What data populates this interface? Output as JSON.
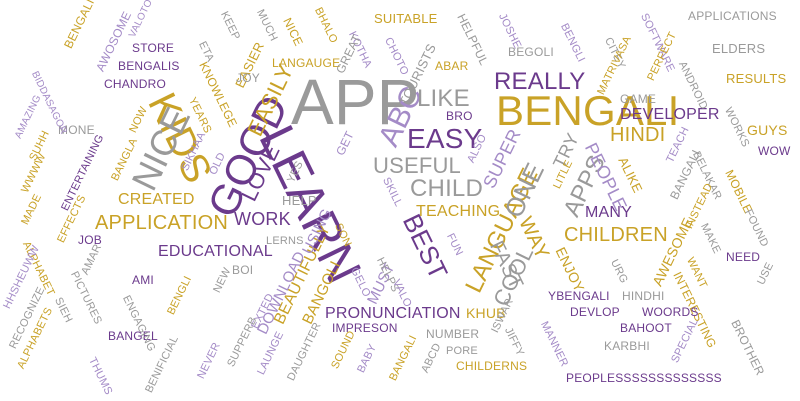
{
  "palette": {
    "purple": "#6b3a8c",
    "lilac": "#a48bc7",
    "gold": "#c9a227",
    "gray": "#9a9a9a"
  },
  "words": [
    {
      "t": "APP",
      "c": "gray"
    },
    {
      "t": "BENGALI",
      "c": "gold"
    },
    {
      "t": "LEARN",
      "c": "purple"
    },
    {
      "t": "GOOD",
      "c": "purple"
    },
    {
      "t": "KIDS",
      "c": "gold"
    },
    {
      "t": "NICE",
      "c": "gray"
    },
    {
      "t": "EASY",
      "c": "purple"
    },
    {
      "t": "ABC",
      "c": "lilac"
    },
    {
      "t": "REALLY",
      "c": "purple"
    },
    {
      "t": "LIKE",
      "c": "gray"
    },
    {
      "t": "CHILD",
      "c": "gray"
    },
    {
      "t": "USEFUL",
      "c": "gray"
    },
    {
      "t": "EASILY",
      "c": "gold"
    },
    {
      "t": "LOVE",
      "c": "purple"
    },
    {
      "t": "BEST",
      "c": "purple"
    },
    {
      "t": "LANGUAGE",
      "c": "gold"
    },
    {
      "t": "ONE",
      "c": "gray"
    },
    {
      "t": "APPS",
      "c": "gray"
    },
    {
      "t": "CHILDREN",
      "c": "gold"
    },
    {
      "t": "HINDI",
      "c": "gold"
    },
    {
      "t": "DEVELOPER",
      "c": "purple"
    },
    {
      "t": "APPLICATION",
      "c": "gold"
    },
    {
      "t": "WORK",
      "c": "purple"
    },
    {
      "t": "WAY",
      "c": "gold"
    },
    {
      "t": "FAST",
      "c": "gray"
    },
    {
      "t": "COOL",
      "c": "gray"
    },
    {
      "t": "TRY",
      "c": "gray"
    },
    {
      "t": "SUPER",
      "c": "lilac"
    },
    {
      "t": "PEOPLE",
      "c": "lilac"
    },
    {
      "t": "MANY",
      "c": "purple"
    },
    {
      "t": "TEACHING",
      "c": "gold"
    },
    {
      "t": "EDUCATIONAL",
      "c": "purple"
    },
    {
      "t": "CREATED",
      "c": "gold"
    },
    {
      "t": "PRONUNCIATION",
      "c": "purple"
    },
    {
      "t": "BEAUTIFULLY",
      "c": "gold"
    },
    {
      "t": "DOWNLOAD",
      "c": "lilac"
    },
    {
      "t": "BANGOLI",
      "c": "gold"
    },
    {
      "t": "USING",
      "c": "lilac"
    },
    {
      "t": "MUST",
      "c": "lilac"
    },
    {
      "t": "HELP",
      "c": "gray"
    },
    {
      "t": "KHUB",
      "c": "gold"
    },
    {
      "t": "ENJOY",
      "c": "gold"
    },
    {
      "t": "AWESOME",
      "c": "gold"
    },
    {
      "t": "ALIKE",
      "c": "gold"
    },
    {
      "t": "GUYS",
      "c": "gold"
    },
    {
      "t": "RESULTS",
      "c": "gold"
    },
    {
      "t": "APPLICATIONS",
      "c": "gray"
    },
    {
      "t": "ELDERS",
      "c": "gray"
    },
    {
      "t": "SUITABLE",
      "c": "gold"
    },
    {
      "t": "LANGAUGE",
      "c": "gold"
    },
    {
      "t": "STORE",
      "c": "purple"
    },
    {
      "t": "BENGALIS",
      "c": "purple"
    },
    {
      "t": "CHANDRO",
      "c": "purple"
    },
    {
      "t": "BENGALI",
      "c": "gold"
    },
    {
      "t": "AWOSOME",
      "c": "lilac"
    },
    {
      "t": "VALOTO",
      "c": "lilac"
    },
    {
      "t": "KEEP",
      "c": "gray"
    },
    {
      "t": "MUCH",
      "c": "gray"
    },
    {
      "t": "NICE",
      "c": "gold"
    },
    {
      "t": "BHALO",
      "c": "gold"
    },
    {
      "t": "KOTHA",
      "c": "lilac"
    },
    {
      "t": "CHOTO",
      "c": "lilac"
    },
    {
      "t": "HELPFUL",
      "c": "gray"
    },
    {
      "t": "JOSHE",
      "c": "lilac"
    },
    {
      "t": "BENGLI",
      "c": "lilac"
    },
    {
      "t": "SOFTWARE",
      "c": "lilac"
    },
    {
      "t": "CITEY",
      "c": "gray"
    },
    {
      "t": "ABAR",
      "c": "gold"
    },
    {
      "t": "BEGOLI",
      "c": "gray"
    },
    {
      "t": "GREAT",
      "c": "gray"
    },
    {
      "t": "TOURISTS",
      "c": "gray"
    },
    {
      "t": "EASIER",
      "c": "gold"
    },
    {
      "t": "ETA",
      "c": "gray"
    },
    {
      "t": "KNOWLEGE",
      "c": "gold"
    },
    {
      "t": "JOY",
      "c": "gray"
    },
    {
      "t": "YEARS",
      "c": "gold"
    },
    {
      "t": "MATRIVASA",
      "c": "gold"
    },
    {
      "t": "PERFECT",
      "c": "gold"
    },
    {
      "t": "ANDROID",
      "c": "gray"
    },
    {
      "t": "GAME",
      "c": "gray"
    },
    {
      "t": "WORKS",
      "c": "gray"
    },
    {
      "t": "WOW",
      "c": "purple"
    },
    {
      "t": "BELAKAR",
      "c": "gray"
    },
    {
      "t": "MOBILE",
      "c": "gold"
    },
    {
      "t": "TEACH",
      "c": "lilac"
    },
    {
      "t": "BANGALI",
      "c": "gray"
    },
    {
      "t": "INSTEAD",
      "c": "gold"
    },
    {
      "t": "FOUND",
      "c": "gray"
    },
    {
      "t": "MAKE",
      "c": "gray"
    },
    {
      "t": "NEED",
      "c": "purple"
    },
    {
      "t": "WANT",
      "c": "gold"
    },
    {
      "t": "USE",
      "c": "gray"
    },
    {
      "t": "INTERESTING",
      "c": "gold"
    },
    {
      "t": "BROTHER",
      "c": "gray"
    },
    {
      "t": "SPECIAL",
      "c": "lilac"
    },
    {
      "t": "WOORDS",
      "c": "purple"
    },
    {
      "t": "BAHOOT",
      "c": "purple"
    },
    {
      "t": "KARBHI",
      "c": "gray"
    },
    {
      "t": "DEVLOP",
      "c": "purple"
    },
    {
      "t": "HINDHI",
      "c": "gray"
    },
    {
      "t": "YBENGALI",
      "c": "purple"
    },
    {
      "t": "URG",
      "c": "gray"
    },
    {
      "t": "PEOPLESSSSSSSSSSSSS",
      "c": "purple"
    },
    {
      "t": "CHILDERNS",
      "c": "gold"
    },
    {
      "t": "MANNER",
      "c": "lilac"
    },
    {
      "t": "JIFFY",
      "c": "gray"
    },
    {
      "t": "ISWAR",
      "c": "gray"
    },
    {
      "t": "PORE",
      "c": "gray"
    },
    {
      "t": "NUMBER",
      "c": "gray"
    },
    {
      "t": "ABCD",
      "c": "gray"
    },
    {
      "t": "BANGALI",
      "c": "gold"
    },
    {
      "t": "BABY",
      "c": "lilac"
    },
    {
      "t": "SOUND",
      "c": "gold"
    },
    {
      "t": "IMPRESON",
      "c": "purple"
    },
    {
      "t": "DAUGHTER",
      "c": "gray"
    },
    {
      "t": "LAUNGE",
      "c": "lilac"
    },
    {
      "t": "EXTED",
      "c": "lilac"
    },
    {
      "t": "NEW",
      "c": "gray"
    },
    {
      "t": "SUPPERB",
      "c": "gray"
    },
    {
      "t": "BOI",
      "c": "gray"
    },
    {
      "t": "HELPS",
      "c": "gray"
    },
    {
      "t": "GELO",
      "c": "lilac"
    },
    {
      "t": "VALO",
      "c": "lilac"
    },
    {
      "t": "FUN",
      "c": "lilac"
    },
    {
      "t": "SON",
      "c": "gold"
    },
    {
      "t": "SKILL",
      "c": "lilac"
    },
    {
      "t": "LERNS",
      "c": "gray"
    },
    {
      "t": "GET",
      "c": "lilac"
    },
    {
      "t": "ALSO",
      "c": "lilac"
    },
    {
      "t": "BRO",
      "c": "purple"
    },
    {
      "t": "LITLE",
      "c": "gold"
    },
    {
      "t": "YES",
      "c": "gray"
    },
    {
      "t": "OLD",
      "c": "lilac"
    },
    {
      "t": "SIKHAA",
      "c": "lilac"
    },
    {
      "t": "NOW",
      "c": "gold"
    },
    {
      "t": "BANGLA",
      "c": "gold"
    },
    {
      "t": "ENTERTAINING",
      "c": "purple"
    },
    {
      "t": "MONE",
      "c": "gray"
    },
    {
      "t": "SUHH",
      "c": "gold"
    },
    {
      "t": "AMAZING",
      "c": "lilac"
    },
    {
      "t": "BIDDASAGOR",
      "c": "lilac"
    },
    {
      "t": "WWWW",
      "c": "gold"
    },
    {
      "t": "MADE",
      "c": "gold"
    },
    {
      "t": "EFFECTS",
      "c": "gold"
    },
    {
      "t": "JOB",
      "c": "purple"
    },
    {
      "t": "ALPHABET",
      "c": "gold"
    },
    {
      "t": "HHSHEUWW",
      "c": "lilac"
    },
    {
      "t": "RECOGNIZE",
      "c": "gray"
    },
    {
      "t": "ALPHABETS",
      "c": "gold"
    },
    {
      "t": "THUMS",
      "c": "lilac"
    },
    {
      "t": "BENIFICIAL",
      "c": "gray"
    },
    {
      "t": "NEVER",
      "c": "lilac"
    },
    {
      "t": "BANGEL",
      "c": "purple"
    },
    {
      "t": "ENGAGING",
      "c": "gray"
    },
    {
      "t": "AMI",
      "c": "purple"
    },
    {
      "t": "AMAR",
      "c": "gray"
    },
    {
      "t": "PICTURES",
      "c": "gray"
    },
    {
      "t": "SIEH",
      "c": "gray"
    },
    {
      "t": "BENGLI",
      "c": "gold"
    }
  ]
}
